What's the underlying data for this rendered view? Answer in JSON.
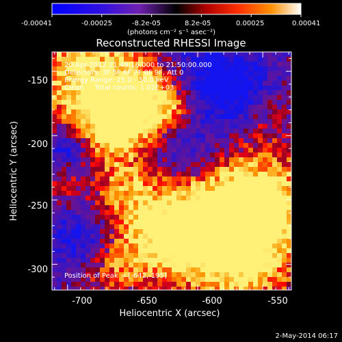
{
  "colorbar": {
    "tick_labels": [
      "-0.00041",
      "-0.00025",
      "-8.2e-05",
      "8.2e-05",
      "0.00025",
      "0.00041"
    ],
    "units_label": "(photons cm⁻² s⁻¹ asec⁻²)",
    "range": [
      -0.00041,
      0.00041
    ]
  },
  "title": "Reconstructed RHESSI Image",
  "info": {
    "line1": "20-Apr-2012 21:49:16.000 to 21:50:00.000",
    "line2": "Detectors: 3F 5F 6F 7F 8F 9F, Att 0",
    "line3": "Energy Range: 25.0 - 50.0 keV",
    "line4": "Clean     Total counts: 1.02E+03"
  },
  "peak_text": "Position of Peak = [-642,-195]",
  "axes": {
    "xlabel": "Heliocentric X (arcsec)",
    "ylabel": "Heliocentric Y (arcsec)",
    "xticks": [
      "-700",
      "-650",
      "-600",
      "-550"
    ],
    "yticks": [
      "-150",
      "-200",
      "-250",
      "-300"
    ],
    "xlim": [
      -712,
      -528
    ],
    "ylim": [
      -320,
      -135
    ]
  },
  "footer_date": "2-May-2014 06:17",
  "colors": {
    "background": "#000000",
    "text": "#ffffff"
  }
}
